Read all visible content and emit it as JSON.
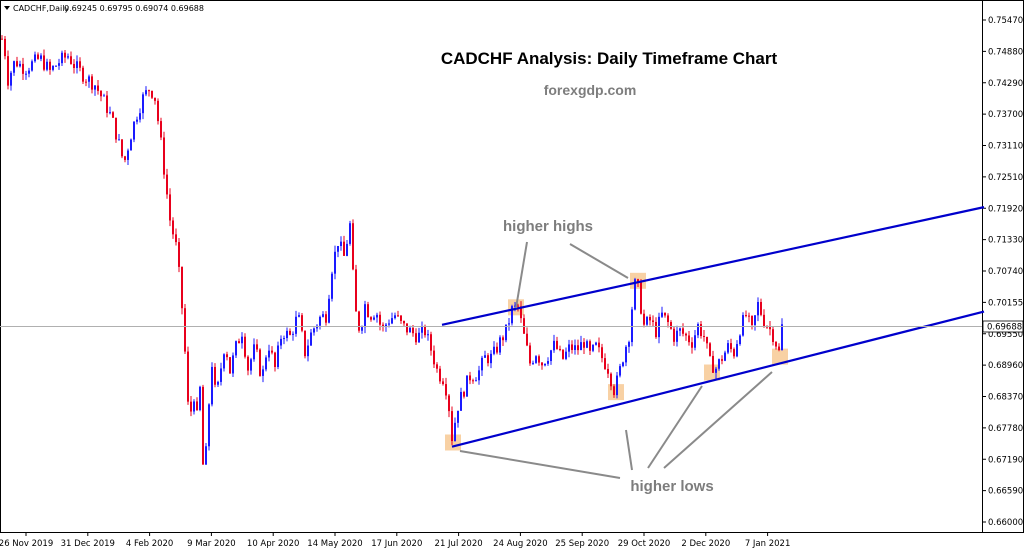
{
  "chart_data": {
    "type": "candlestick",
    "title": "CADCHF Analysis: Daily Timeframe Chart",
    "subtitle": "forexgdp.com",
    "header": {
      "symbol": "CADCHF,Daily",
      "values": "0.69245 0.69795 0.69074 0.69688"
    },
    "current_price_label": "0.69688",
    "current_price": 0.69688,
    "y_ticks": [
      "0.75470",
      "0.74880",
      "0.74290",
      "0.73700",
      "0.73110",
      "0.72510",
      "0.71920",
      "0.71330",
      "0.70740",
      "0.70155",
      "0.69550",
      "0.68960",
      "0.68370",
      "0.67780",
      "0.67190",
      "0.66590",
      "0.66000"
    ],
    "x_ticks": [
      "26 Nov 2019",
      "31 Dec 2019",
      "4 Feb 2020",
      "9 Mar 2020",
      "10 Apr 2020",
      "14 May 2020",
      "17 Jun 2020",
      "21 Jul 2020",
      "24 Aug 2020",
      "25 Sep 2020",
      "29 Oct 2020",
      "2 Dec 2020",
      "7 Jan 2021"
    ],
    "ylim": [
      0.6575,
      0.757
    ],
    "price_path": [
      [
        0,
        0.7495
      ],
      [
        3,
        0.752
      ],
      [
        8,
        0.7435
      ],
      [
        15,
        0.747
      ],
      [
        25,
        0.7455
      ],
      [
        40,
        0.7475
      ],
      [
        50,
        0.745
      ],
      [
        60,
        0.747
      ],
      [
        68,
        0.748
      ],
      [
        75,
        0.746
      ],
      [
        85,
        0.744
      ],
      [
        95,
        0.7425
      ],
      [
        105,
        0.739
      ],
      [
        112,
        0.736
      ],
      [
        118,
        0.732
      ],
      [
        124,
        0.7275
      ],
      [
        130,
        0.7325
      ],
      [
        136,
        0.7365
      ],
      [
        143,
        0.74
      ],
      [
        150,
        0.742
      ],
      [
        155,
        0.74
      ],
      [
        160,
        0.733
      ],
      [
        165,
        0.725
      ],
      [
        170,
        0.717
      ],
      [
        176,
        0.712
      ],
      [
        180,
        0.705
      ],
      [
        184,
        0.696
      ],
      [
        187,
        0.684
      ],
      [
        190,
        0.678
      ],
      [
        193,
        0.687
      ],
      [
        196,
        0.678
      ],
      [
        200,
        0.685
      ],
      [
        204,
        0.666
      ],
      [
        208,
        0.68
      ],
      [
        212,
        0.69
      ],
      [
        216,
        0.683
      ],
      [
        220,
        0.688
      ],
      [
        225,
        0.694
      ],
      [
        230,
        0.6885
      ],
      [
        236,
        0.693
      ],
      [
        242,
        0.696
      ],
      [
        248,
        0.689
      ],
      [
        255,
        0.693
      ],
      [
        262,
        0.687
      ],
      [
        268,
        0.694
      ],
      [
        275,
        0.689
      ],
      [
        282,
        0.696
      ],
      [
        290,
        0.695
      ],
      [
        298,
        0.699
      ],
      [
        305,
        0.692
      ],
      [
        312,
        0.696
      ],
      [
        320,
        0.6985
      ],
      [
        326,
        0.699
      ],
      [
        332,
        0.708
      ],
      [
        338,
        0.713
      ],
      [
        344,
        0.71
      ],
      [
        350,
        0.716
      ],
      [
        355,
        0.7
      ],
      [
        360,
        0.696
      ],
      [
        365,
        0.701
      ],
      [
        370,
        0.699
      ],
      [
        376,
        0.7
      ],
      [
        382,
        0.696
      ],
      [
        388,
        0.698
      ],
      [
        395,
        0.699
      ],
      [
        402,
        0.697
      ],
      [
        410,
        0.696
      ],
      [
        418,
        0.695
      ],
      [
        425,
        0.696
      ],
      [
        432,
        0.692
      ],
      [
        438,
        0.688
      ],
      [
        444,
        0.687
      ],
      [
        448,
        0.6835
      ],
      [
        452,
        0.676
      ],
      [
        458,
        0.682
      ],
      [
        464,
        0.685
      ],
      [
        470,
        0.6875
      ],
      [
        478,
        0.688
      ],
      [
        485,
        0.691
      ],
      [
        492,
        0.691
      ],
      [
        500,
        0.694
      ],
      [
        506,
        0.696
      ],
      [
        512,
        0.7
      ],
      [
        518,
        0.7005
      ],
      [
        524,
        0.695
      ],
      [
        530,
        0.69
      ],
      [
        536,
        0.692
      ],
      [
        542,
        0.69
      ],
      [
        548,
        0.6915
      ],
      [
        555,
        0.6935
      ],
      [
        562,
        0.6905
      ],
      [
        570,
        0.693
      ],
      [
        577,
        0.6925
      ],
      [
        584,
        0.694
      ],
      [
        590,
        0.6915
      ],
      [
        596,
        0.693
      ],
      [
        602,
        0.691
      ],
      [
        608,
        0.689
      ],
      [
        614,
        0.685
      ],
      [
        618,
        0.687
      ],
      [
        624,
        0.692
      ],
      [
        630,
        0.696
      ],
      [
        634,
        0.705
      ],
      [
        638,
        0.704
      ],
      [
        644,
        0.697
      ],
      [
        650,
        0.698
      ],
      [
        656,
        0.696
      ],
      [
        662,
        0.699
      ],
      [
        668,
        0.6975
      ],
      [
        674,
        0.695
      ],
      [
        680,
        0.696
      ],
      [
        686,
        0.695
      ],
      [
        692,
        0.694
      ],
      [
        698,
        0.697
      ],
      [
        704,
        0.695
      ],
      [
        710,
        0.69
      ],
      [
        716,
        0.689
      ],
      [
        722,
        0.691
      ],
      [
        728,
        0.693
      ],
      [
        734,
        0.692
      ],
      [
        740,
        0.6965
      ],
      [
        746,
        0.699
      ],
      [
        752,
        0.696
      ],
      [
        758,
        0.701
      ],
      [
        764,
        0.698
      ],
      [
        768,
        0.697
      ],
      [
        774,
        0.695
      ],
      [
        779,
        0.692
      ],
      [
        782,
        0.6969
      ]
    ],
    "channel": {
      "upper": {
        "from": [
          442,
          0.6972
        ],
        "to": [
          984,
          0.7194
        ]
      },
      "lower": {
        "from": [
          452,
          0.6742
        ],
        "to": [
          984,
          0.6997
        ]
      }
    },
    "annotations": {
      "higher_highs": "higher highs",
      "higher_lows": "higher lows"
    },
    "colors": {
      "up": "#1a1aff",
      "down": "#e8001c",
      "channel": "#0000cc",
      "highlight": "#f5c186",
      "pointer": "#8a8a8a"
    }
  }
}
